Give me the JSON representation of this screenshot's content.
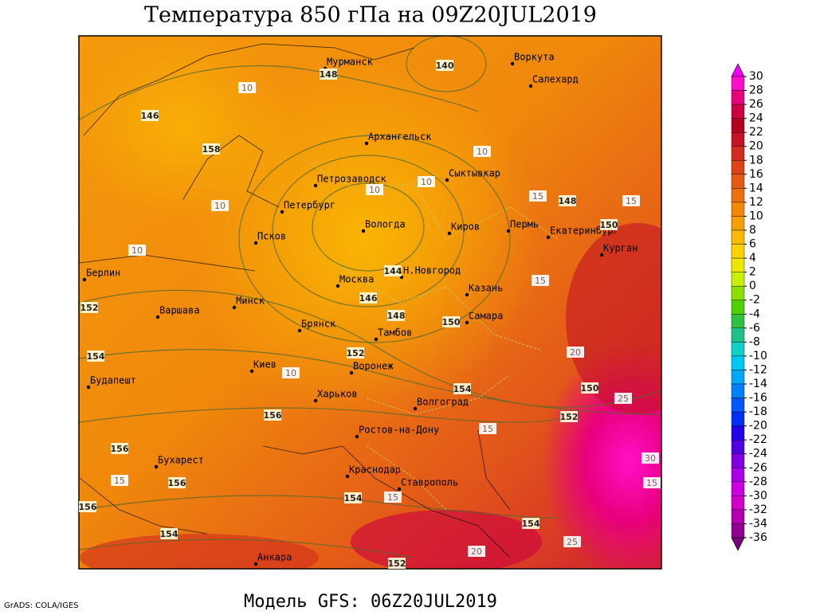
{
  "title": "Температура 850 гПа на 09Z20JUL2019",
  "footer": "Модель GFS: 06Z20JUL2019",
  "credit": "GrADS: COLA/IGES",
  "cities": [
    "Мурманск",
    "Архангельск",
    "Воркута",
    "Салехард",
    "Петрозаводск",
    "Сыктывкар",
    "Петербург",
    "Вологда",
    "Киров",
    "Пермь",
    "Екатеринбург",
    "Курган",
    "Псков",
    "Берлин",
    "Н.Новгород",
    "Москва",
    "Казань",
    "Минск",
    "Варшава",
    "Самара",
    "Брянск",
    "Тамбов",
    "Киев",
    "Воронеж",
    "Будапешт",
    "Харьков",
    "Волгоград",
    "Ростов-на-Дону",
    "Бухарест",
    "Краснодар",
    "Ставрополь",
    "Анкара"
  ],
  "contour_labels": [
    140,
    148,
    10,
    146,
    158,
    10,
    10,
    10,
    10,
    15,
    148,
    15,
    150,
    10,
    144,
    146,
    148,
    150,
    15,
    152,
    152,
    154,
    10,
    154,
    156,
    156,
    156,
    156,
    154,
    154,
    15,
    15,
    20,
    150,
    152,
    25,
    30,
    15,
    154,
    20,
    25,
    15,
    152
  ],
  "colorbar": {
    "ticks": [
      30,
      28,
      26,
      24,
      22,
      20,
      18,
      16,
      14,
      12,
      10,
      8,
      6,
      4,
      2,
      0,
      -2,
      -4,
      -6,
      -8,
      -10,
      -12,
      -14,
      -16,
      -18,
      -20,
      -22,
      -24,
      -26,
      -28,
      -30,
      -32,
      -34,
      -36
    ],
    "bin_colors": [
      "#f000f0",
      "#ff10c8",
      "#e8007c",
      "#cc0040",
      "#b40020",
      "#c41424",
      "#d22c1e",
      "#dc4418",
      "#e45a12",
      "#ec700e",
      "#f2880a",
      "#f6a006",
      "#faba02",
      "#fcd200",
      "#f0e600",
      "#c8ef00",
      "#8ce000",
      "#50d000",
      "#30c040",
      "#20c088",
      "#10d0c8",
      "#00c8f0",
      "#00a8f8",
      "#0080ff",
      "#0058ff",
      "#0030f0",
      "#2000e8",
      "#5000e0",
      "#8000e0",
      "#a800e8",
      "#c800e0",
      "#d000c8",
      "#b000b0",
      "#900090",
      "#780078"
    ]
  }
}
